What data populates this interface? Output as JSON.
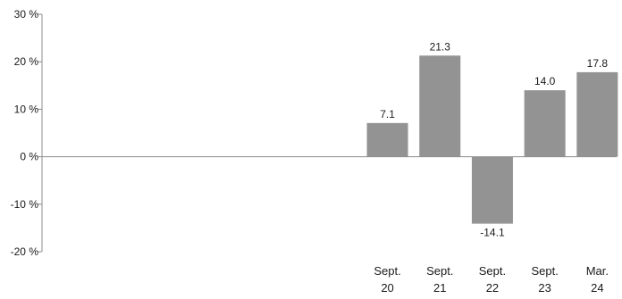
{
  "chart_data": {
    "type": "bar",
    "categories": [
      {
        "line1": "",
        "line2": ""
      },
      {
        "line1": "",
        "line2": ""
      },
      {
        "line1": "",
        "line2": ""
      },
      {
        "line1": "",
        "line2": ""
      },
      {
        "line1": "",
        "line2": ""
      },
      {
        "line1": "",
        "line2": ""
      },
      {
        "line1": "Sept.",
        "line2": "20"
      },
      {
        "line1": "Sept.",
        "line2": "21"
      },
      {
        "line1": "Sept.",
        "line2": "22"
      },
      {
        "line1": "Sept.",
        "line2": "23"
      },
      {
        "line1": "Mar.",
        "line2": "24"
      }
    ],
    "values": [
      null,
      null,
      null,
      null,
      null,
      null,
      7.1,
      21.3,
      -14.1,
      14.0,
      17.8
    ],
    "value_labels": [
      "",
      "",
      "",
      "",
      "",
      "",
      "7.1",
      "21.3",
      "-14.1",
      "14.0",
      "17.8"
    ],
    "yticks": [
      {
        "value": 30,
        "label": "30 %"
      },
      {
        "value": 20,
        "label": "20 %"
      },
      {
        "value": 10,
        "label": "10 %"
      },
      {
        "value": 0,
        "label": "0 %"
      },
      {
        "value": -10,
        "label": "-10 %"
      },
      {
        "value": -20,
        "label": "-20 %"
      }
    ],
    "ylim": [
      -20,
      30
    ],
    "title": "",
    "xlabel": "",
    "ylabel": "",
    "grid": false,
    "bar_color": "#939393",
    "axis_color": "#8c8c8c"
  }
}
